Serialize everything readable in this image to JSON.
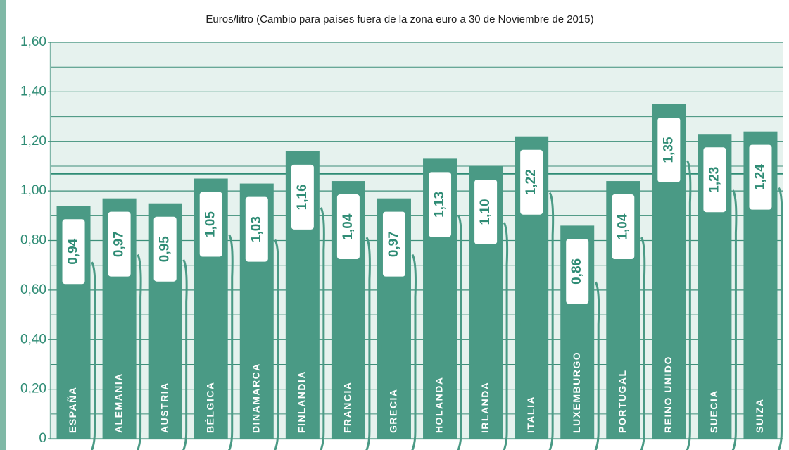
{
  "chart_data": {
    "type": "bar",
    "title": "Euros/litro (Cambio para países fuera de la zona euro a 30 de Noviembre de 2015)",
    "categories": [
      "ESPAÑA",
      "ALEMANIA",
      "AUSTRIA",
      "BÉLGICA",
      "DINAMARCA",
      "FINLANDIA",
      "FRANCIA",
      "GRECIA",
      "HOLANDA",
      "IRLANDA",
      "ITALIA",
      "LUXEMBURGO",
      "PORTUGAL",
      "REINO UNIDO",
      "SUECIA",
      "SUIZA"
    ],
    "values": [
      0.94,
      0.97,
      0.95,
      1.05,
      1.03,
      1.16,
      1.04,
      0.97,
      1.13,
      1.1,
      1.22,
      0.86,
      1.04,
      1.35,
      1.23,
      1.24
    ],
    "value_labels": [
      "0,94",
      "0,97",
      "0,95",
      "1,05",
      "1,03",
      "1,16",
      "1,04",
      "0,97",
      "1,13",
      "1,10",
      "1,22",
      "0,86",
      "1,04",
      "1,35",
      "1,23",
      "1,24"
    ],
    "color": "#4a9a85",
    "ylim": [
      0,
      1.6
    ],
    "yticks": [
      0,
      {
        "value": 0.2,
        "label": "0,20"
      },
      {
        "value": 0.4,
        "label": "0,40"
      },
      {
        "value": 0.6,
        "label": "0,60"
      },
      {
        "value": 0.8,
        "label": "0,80"
      },
      {
        "value": 1.0,
        "label": "1,00"
      },
      {
        "value": 1.2,
        "label": "1,20"
      },
      {
        "value": 1.4,
        "label": "1,40"
      },
      {
        "value": 1.6,
        "label": "1,60"
      }
    ],
    "minor_yticks": [
      0.1,
      0.3,
      0.5,
      0.7,
      0.9,
      1.1,
      1.3,
      1.5
    ],
    "reference_line": 1.07,
    "grid": true
  }
}
